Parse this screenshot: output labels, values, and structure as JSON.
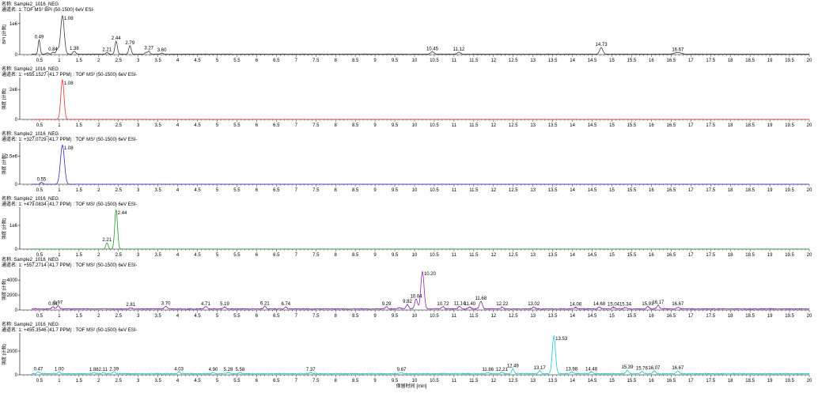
{
  "chart_data": {
    "type": "line",
    "x_range": [
      0,
      20
    ],
    "x_ticks": [
      0.5,
      1,
      1.5,
      2,
      2.5,
      3,
      3.5,
      4,
      4.5,
      5,
      5.5,
      6,
      6.5,
      7,
      7.5,
      8,
      8.5,
      9,
      9.5,
      10,
      10.5,
      11,
      11.5,
      12,
      12.5,
      13,
      13.5,
      14,
      14.5,
      15,
      15.5,
      16,
      16.5,
      17,
      17.5,
      18,
      18.5,
      19,
      19.5,
      20
    ],
    "x_tick_labels": [
      "0.5",
      "1",
      "1.5",
      "2",
      "2.5",
      "3",
      "3.5",
      "4",
      "4.5",
      "5",
      "5.5",
      "6",
      "6.5",
      "7",
      "7.5",
      "8",
      "8.5",
      "9",
      "9.5",
      "10",
      "10.5",
      "11",
      "11.5",
      "12",
      "12.5",
      "13",
      "13.5",
      "14",
      "14.5",
      "15",
      "15.5",
      "16",
      "16.5",
      "17",
      "17.5",
      "18",
      "18.5",
      "19",
      "19.5",
      "20"
    ],
    "xlabel": "保留时间 [min]",
    "panels": [
      {
        "name_line": "名称: Sample2_1016_NEG",
        "channel_line": "通道名: 1: TOF MS² BPI (50-1500) 6eV ESI-",
        "ylabel": "BPI [计数]",
        "ymax": 1300000,
        "yticks": [
          0,
          1000000
        ],
        "ytick_labels": [
          "0",
          "1e6"
        ],
        "color": "#3c3c3c",
        "baseline": 15000,
        "noise": 12000,
        "peaks": [
          {
            "rt": 0.49,
            "h": 460000,
            "w": 0.025,
            "label": "0.49"
          },
          {
            "rt": 0.7,
            "h": 40000,
            "w": 0.03,
            "label": ""
          },
          {
            "rt": 0.84,
            "h": 60000,
            "w": 0.03,
            "label": "0.84"
          },
          {
            "rt": 0.95,
            "h": 160000,
            "w": 0.03,
            "label": ""
          },
          {
            "rt": 1.08,
            "h": 1240000,
            "w": 0.045,
            "label": "1.08"
          },
          {
            "rt": 1.38,
            "h": 90000,
            "w": 0.035,
            "label": "1.38"
          },
          {
            "rt": 2.21,
            "h": 50000,
            "w": 0.03,
            "label": "2.21"
          },
          {
            "rt": 2.44,
            "h": 420000,
            "w": 0.03,
            "label": "2.44"
          },
          {
            "rt": 2.79,
            "h": 270000,
            "w": 0.03,
            "label": "2.79"
          },
          {
            "rt": 3.2,
            "h": 60000,
            "w": 0.025,
            "label": ""
          },
          {
            "rt": 3.27,
            "h": 100000,
            "w": 0.025,
            "label": "3.27"
          },
          {
            "rt": 3.6,
            "h": 35000,
            "w": 0.03,
            "label": "3.60"
          },
          {
            "rt": 10.45,
            "h": 75000,
            "w": 0.04,
            "label": "10.45"
          },
          {
            "rt": 11.12,
            "h": 60000,
            "w": 0.04,
            "label": "11.12"
          },
          {
            "rt": 14.73,
            "h": 210000,
            "w": 0.04,
            "label": "14.73"
          },
          {
            "rt": 16.67,
            "h": 55000,
            "w": 0.08,
            "label": "16.67"
          }
        ]
      },
      {
        "name_line": "名称: Sample2_1016_NEG",
        "channel_line": "通道名: 1: +655.1527 (41.7 PPM) : TOF MS² (50-1500) 6eV ESI-",
        "ylabel": "强度 [计数]",
        "ymax": 2700000,
        "yticks": [
          0,
          2000000
        ],
        "ytick_labels": [
          "0",
          "2e6"
        ],
        "color": "#e0303a",
        "baseline": 0,
        "noise": 0,
        "peaks": [
          {
            "rt": 1.08,
            "h": 2650000,
            "w": 0.04,
            "label": "1.08"
          }
        ]
      },
      {
        "name_line": "名称: Sample2_1016_NEG",
        "channel_line": "通道名: 1: +327.0729 (41.7 PPM) : TOF MS² (50-1500) 6eV ESI-",
        "ylabel": "强度 [计数]",
        "ymax": 3600000,
        "yticks": [
          0,
          2500000
        ],
        "ytick_labels": [
          "0",
          "2.5e6"
        ],
        "color": "#2c2cc8",
        "baseline": 0,
        "noise": 0,
        "peaks": [
          {
            "rt": 0.55,
            "h": 180000,
            "w": 0.03,
            "label": "0.55"
          },
          {
            "rt": 1.08,
            "h": 3500000,
            "w": 0.05,
            "label": "1.08"
          }
        ]
      },
      {
        "name_line": "名称: Sample2_1016_NEG",
        "channel_line": "通道名: 1: +479.0834 (41.7 PPM) : TOF MS² (50-1500) 6eV ESI-",
        "ylabel": "强度 [计数]",
        "ymax": 1700000,
        "yticks": [
          0,
          1000000
        ],
        "ytick_labels": [
          "0",
          "1e6"
        ],
        "color": "#1e9a2a",
        "baseline": 0,
        "noise": 0,
        "peaks": [
          {
            "rt": 2.21,
            "h": 260000,
            "w": 0.03,
            "label": "2.21"
          },
          {
            "rt": 2.44,
            "h": 1650000,
            "w": 0.035,
            "label": "2.44"
          }
        ]
      },
      {
        "name_line": "名称: Sample2_1016_NEG",
        "channel_line": "通道名: 1: +557.2714 (41.7 PPM) : TOF MS² (50-1500) 6eV ESI-",
        "ylabel": "强度 [计数]",
        "ymax": 5400,
        "yticks": [
          0,
          2000,
          4000
        ],
        "ytick_labels": [
          "0",
          "2000",
          "4000"
        ],
        "color": "#8a2aa8",
        "baseline": 150,
        "noise": 120,
        "peaks": [
          {
            "rt": 0.84,
            "h": 250,
            "w": 0.03,
            "label": "0.84"
          },
          {
            "rt": 0.97,
            "h": 450,
            "w": 0.03,
            "label": "0.97"
          },
          {
            "rt": 2.81,
            "h": 150,
            "w": 0.03,
            "label": "2.81"
          },
          {
            "rt": 3.7,
            "h": 350,
            "w": 0.03,
            "label": "3.70"
          },
          {
            "rt": 4.71,
            "h": 300,
            "w": 0.03,
            "label": "4.71"
          },
          {
            "rt": 5.19,
            "h": 250,
            "w": 0.03,
            "label": "5.19"
          },
          {
            "rt": 6.21,
            "h": 350,
            "w": 0.03,
            "label": "6.21"
          },
          {
            "rt": 6.74,
            "h": 250,
            "w": 0.03,
            "label": "6.74"
          },
          {
            "rt": 9.29,
            "h": 300,
            "w": 0.03,
            "label": "9.29"
          },
          {
            "rt": 9.62,
            "h": 150,
            "w": 0.03,
            "label": ""
          },
          {
            "rt": 9.82,
            "h": 600,
            "w": 0.03,
            "label": "9.82"
          },
          {
            "rt": 10.04,
            "h": 1300,
            "w": 0.035,
            "label": "10.04"
          },
          {
            "rt": 10.2,
            "h": 5000,
            "w": 0.04,
            "label": "10.20"
          },
          {
            "rt": 10.72,
            "h": 300,
            "w": 0.03,
            "label": "10.72"
          },
          {
            "rt": 11.14,
            "h": 350,
            "w": 0.03,
            "label": "11.14"
          },
          {
            "rt": 11.4,
            "h": 250,
            "w": 0.03,
            "label": "11.40"
          },
          {
            "rt": 11.68,
            "h": 1000,
            "w": 0.035,
            "label": "11.68"
          },
          {
            "rt": 12.22,
            "h": 250,
            "w": 0.03,
            "label": "12.22"
          },
          {
            "rt": 13.02,
            "h": 250,
            "w": 0.03,
            "label": "13.02"
          },
          {
            "rt": 14.08,
            "h": 200,
            "w": 0.03,
            "label": "14.08"
          },
          {
            "rt": 14.68,
            "h": 250,
            "w": 0.03,
            "label": "14.68"
          },
          {
            "rt": 15.04,
            "h": 200,
            "w": 0.03,
            "label": "15.04"
          },
          {
            "rt": 15.34,
            "h": 200,
            "w": 0.03,
            "label": "15.34"
          },
          {
            "rt": 15.91,
            "h": 300,
            "w": 0.03,
            "label": "15.91"
          },
          {
            "rt": 16.17,
            "h": 500,
            "w": 0.03,
            "label": "16.17"
          },
          {
            "rt": 16.67,
            "h": 250,
            "w": 0.03,
            "label": "16.67"
          }
        ]
      },
      {
        "name_line": "名称: Sample2_1016_NEG",
        "channel_line": "通道名: 1: +455.3546 (41.7 PPM) : TOF MS² (50-1500) 6eV ESI-",
        "ylabel": "强度 [计数]",
        "ymax": 3400,
        "yticks": [
          0,
          2000
        ],
        "ytick_labels": [
          "0",
          "2000"
        ],
        "color": "#18c8d8",
        "baseline": 100,
        "noise": 70,
        "peaks": [
          {
            "rt": 0.47,
            "h": 150,
            "w": 0.03,
            "label": "0.47"
          },
          {
            "rt": 1.0,
            "h": 150,
            "w": 0.03,
            "label": "1.00"
          },
          {
            "rt": 1.88,
            "h": 100,
            "w": 0.03,
            "label": "1.88"
          },
          {
            "rt": 2.11,
            "h": 100,
            "w": 0.03,
            "label": "2.11"
          },
          {
            "rt": 2.39,
            "h": 150,
            "w": 0.03,
            "label": "2.39"
          },
          {
            "rt": 4.03,
            "h": 150,
            "w": 0.03,
            "label": "4.03"
          },
          {
            "rt": 4.9,
            "h": 100,
            "w": 0.03,
            "label": "4.90"
          },
          {
            "rt": 5.28,
            "h": 100,
            "w": 0.03,
            "label": "5.28"
          },
          {
            "rt": 5.58,
            "h": 100,
            "w": 0.03,
            "label": "5.58"
          },
          {
            "rt": 7.37,
            "h": 100,
            "w": 0.03,
            "label": "7.37"
          },
          {
            "rt": 9.67,
            "h": 100,
            "w": 0.03,
            "label": "9.67"
          },
          {
            "rt": 11.86,
            "h": 100,
            "w": 0.03,
            "label": "11.86"
          },
          {
            "rt": 12.21,
            "h": 100,
            "w": 0.03,
            "label": "12.21"
          },
          {
            "rt": 12.49,
            "h": 400,
            "w": 0.03,
            "label": "12.49"
          },
          {
            "rt": 13.17,
            "h": 250,
            "w": 0.03,
            "label": "13.17"
          },
          {
            "rt": 13.53,
            "h": 3150,
            "w": 0.04,
            "label": "13.53"
          },
          {
            "rt": 13.98,
            "h": 150,
            "w": 0.03,
            "label": "13.98"
          },
          {
            "rt": 14.48,
            "h": 150,
            "w": 0.03,
            "label": "14.48"
          },
          {
            "rt": 15.39,
            "h": 300,
            "w": 0.03,
            "label": "15.39"
          },
          {
            "rt": 15.76,
            "h": 200,
            "w": 0.03,
            "label": "15.76"
          },
          {
            "rt": 16.07,
            "h": 250,
            "w": 0.03,
            "label": "16.07"
          },
          {
            "rt": 16.67,
            "h": 250,
            "w": 0.03,
            "label": "16.67"
          }
        ]
      }
    ]
  }
}
